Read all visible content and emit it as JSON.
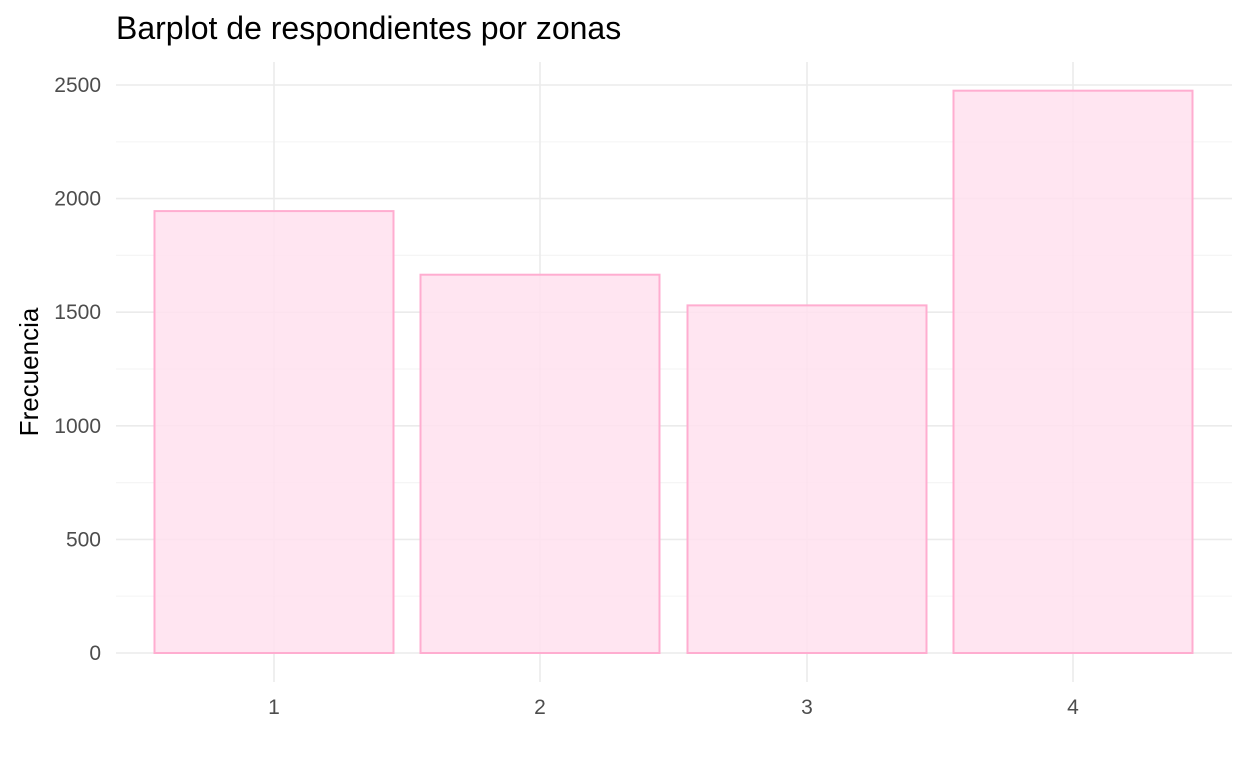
{
  "chart_data": {
    "type": "bar",
    "title": "Barplot de respondientes por zonas",
    "xlabel": "",
    "ylabel": "Frecuencia",
    "categories": [
      "1",
      "2",
      "3",
      "4"
    ],
    "values": [
      1945,
      1665,
      1530,
      2475
    ],
    "ylim": [
      0,
      2500
    ],
    "yticks": [
      0,
      500,
      1000,
      1500,
      2000,
      2500
    ],
    "grid": true,
    "legend": "none",
    "colors": {
      "bar_fill": "#ffe1ee",
      "bar_stroke": "#ffadd0",
      "grid": "#ebebeb",
      "minor_grid": "#f5f5f5"
    }
  }
}
